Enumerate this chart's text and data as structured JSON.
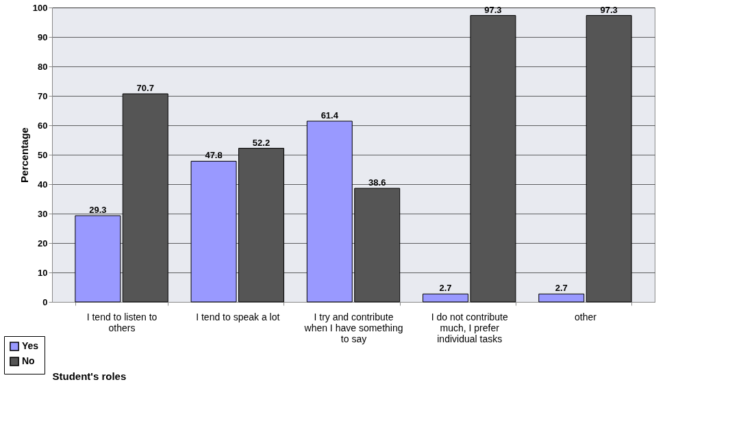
{
  "chart_data": {
    "type": "bar",
    "xlabel": "Student's roles",
    "ylabel": "Percentage",
    "categories": [
      "I tend to listen to others",
      "I tend to speak a lot",
      "I try and contribute when I have something to say",
      "I do not contribute much, I prefer individual tasks",
      "other"
    ],
    "series": [
      {
        "name": "Yes",
        "color": "#9999ff",
        "values": [
          29.3,
          47.8,
          61.4,
          2.7,
          2.7
        ]
      },
      {
        "name": "No",
        "color": "#555555",
        "values": [
          70.7,
          52.2,
          38.6,
          97.3,
          97.3
        ]
      }
    ],
    "ylim": [
      0,
      100
    ],
    "yticks": [
      0,
      10,
      20,
      30,
      40,
      50,
      60,
      70,
      80,
      90,
      100
    ],
    "grid": "y",
    "legend": "bottom left",
    "data_labels": true
  }
}
